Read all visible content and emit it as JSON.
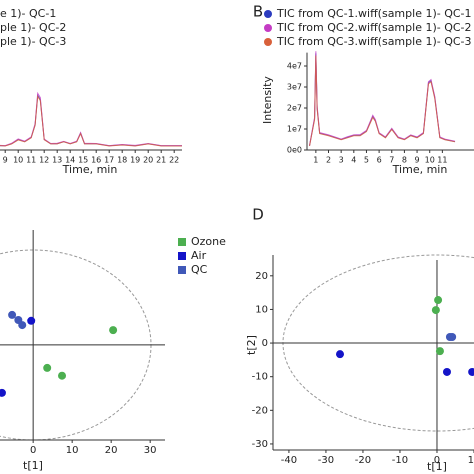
{
  "chart_data": [
    {
      "type": "line",
      "x_label": "Time, min",
      "x": [
        8.6,
        9,
        9.5,
        10,
        10.5,
        11,
        11.3,
        11.5,
        11.7,
        12,
        12.5,
        13,
        13.5,
        14,
        14.5,
        14.8,
        15.1,
        16,
        17,
        18,
        19,
        20,
        21,
        22,
        22.6
      ],
      "series": [
        {
          "name": "e 1)- QC-1",
          "color": "#2b3bbf",
          "values": [
            2000000,
            2000000,
            3000000,
            5000000,
            4000000,
            6000000,
            12000000,
            26000000,
            24000000,
            5000000,
            3000000,
            3000000,
            4000000,
            3000000,
            4000000,
            8000000,
            3000000,
            3000000,
            2000000,
            2500000,
            2000000,
            3000000,
            2000000,
            2000000,
            2000000
          ]
        },
        {
          "name": "ple 1)- QC-2",
          "color": "#c43cc4",
          "values": [
            2200000,
            2100000,
            3200000,
            5300000,
            4200000,
            6200000,
            12500000,
            27000000,
            25000000,
            5200000,
            3100000,
            3200000,
            4100000,
            3100000,
            4200000,
            8300000,
            3200000,
            3100000,
            2100000,
            2600000,
            2200000,
            3100000,
            2100000,
            2100000,
            2100000
          ]
        },
        {
          "name": "ple 1)- QC-3",
          "color": "#d8603a",
          "values": [
            2100000,
            1900000,
            2900000,
            4800000,
            3900000,
            5800000,
            11800000,
            25500000,
            23500000,
            4900000,
            2900000,
            2900000,
            3900000,
            2900000,
            3900000,
            7800000,
            2900000,
            2900000,
            1900000,
            2400000,
            1900000,
            2900000,
            1900000,
            1900000,
            1900000
          ]
        }
      ],
      "xlim": [
        8.6,
        22.6
      ],
      "xticks": [
        9,
        10,
        11,
        12,
        13,
        14,
        15,
        16,
        17,
        18,
        19,
        20,
        21,
        22
      ],
      "ylim": [
        0,
        44000000
      ]
    },
    {
      "type": "line",
      "panel": "B",
      "x_label": "Time, min",
      "y_label": "Intensity",
      "x": [
        0.5,
        0.9,
        1.0,
        1.1,
        1.3,
        2,
        2.5,
        3,
        3.5,
        4,
        4.5,
        5,
        5.5,
        5.7,
        6,
        6.5,
        7,
        7.5,
        8,
        8.5,
        9,
        9.5,
        9.9,
        10.1,
        10.4,
        10.8,
        11.2,
        12
      ],
      "series": [
        {
          "name": "TIC from QC-1.wiff(sample 1)- QC-1",
          "color": "#2b3bbf",
          "values": [
            2000000,
            15000000,
            46000000,
            20000000,
            8000000,
            7000000,
            6000000,
            5000000,
            6000000,
            7000000,
            7000000,
            9000000,
            16000000,
            14000000,
            8000000,
            6000000,
            10000000,
            6000000,
            5000000,
            7000000,
            6000000,
            8000000,
            32000000,
            33000000,
            25000000,
            6000000,
            5000000,
            4000000
          ]
        },
        {
          "name": "TIC from QC-2.wiff(sample 1)- QC-2",
          "color": "#c43cc4",
          "values": [
            2200000,
            15500000,
            47000000,
            21000000,
            8300000,
            7200000,
            6200000,
            5200000,
            6300000,
            7200000,
            7300000,
            9300000,
            16500000,
            14500000,
            8200000,
            6200000,
            10300000,
            6200000,
            5200000,
            7200000,
            6200000,
            8300000,
            32500000,
            33500000,
            25500000,
            6200000,
            5200000,
            4200000
          ]
        },
        {
          "name": "TIC from QC-3.wiff(sample 1)- QC-3",
          "color": "#d8603a",
          "values": [
            1900000,
            14500000,
            45000000,
            19500000,
            7800000,
            6800000,
            5800000,
            4900000,
            5800000,
            6800000,
            6800000,
            8800000,
            15500000,
            13700000,
            7800000,
            5800000,
            9800000,
            5800000,
            4900000,
            6800000,
            5800000,
            7800000,
            31500000,
            32500000,
            24500000,
            5800000,
            4900000,
            3900000
          ]
        }
      ],
      "xlim": [
        0.3,
        13.5
      ],
      "xticks": [
        1,
        2,
        3,
        4,
        5,
        6,
        7,
        8,
        9,
        10,
        11
      ],
      "ylim": [
        0,
        44000000
      ],
      "yticks": [
        {
          "value": 0,
          "label": "0e0"
        },
        {
          "value": 10000000,
          "label": "1e7"
        },
        {
          "value": 20000000,
          "label": "2e7"
        },
        {
          "value": 30000000,
          "label": "3e7"
        },
        {
          "value": 40000000,
          "label": "4e7"
        }
      ]
    },
    {
      "type": "scatter",
      "x_label": "t[1]",
      "series": [
        {
          "name": "Ozone",
          "color": "#4caf50",
          "x": [
            20.5,
            3.6,
            7.4
          ],
          "values": [
            3.8,
            -5.9,
            -7.9
          ]
        },
        {
          "name": "Air",
          "color": "#1414c8",
          "x": [
            -0.5,
            -8
          ],
          "values": [
            6.2,
            -12.3
          ]
        },
        {
          "name": "QC",
          "color": "#4058b8",
          "x": [
            -5.4,
            -3.8,
            -2.8
          ],
          "values": [
            7.7,
            6.4,
            5.1
          ]
        }
      ],
      "xlim": [
        -8.5,
        33.8
      ],
      "xticks": [
        0,
        10,
        20,
        30
      ],
      "ylim": [
        -24.4,
        29.5
      ]
    },
    {
      "type": "scatter",
      "panel": "D",
      "x_label": "t[1]",
      "y_label": "t[2]",
      "series": [
        {
          "color": "#4caf50",
          "x": [
            0.3,
            -0.3,
            0.8
          ],
          "values": [
            12.8,
            9.8,
            -2.4
          ]
        },
        {
          "color": "#1414c8",
          "x": [
            -26.2,
            2.7,
            9.5
          ],
          "values": [
            -3.3,
            -8.6,
            -8.6
          ]
        },
        {
          "color": "#4058b8",
          "x": [
            4.1,
            3.5
          ],
          "values": [
            1.8,
            1.8
          ]
        }
      ],
      "xlim": [
        -44.3,
        10
      ],
      "xticks": [
        -40,
        -30,
        -20,
        -10,
        0,
        10
      ],
      "ylim": [
        -31.8,
        24.7
      ],
      "yticks": [
        20,
        10,
        0,
        -10,
        -20,
        -30
      ]
    }
  ]
}
